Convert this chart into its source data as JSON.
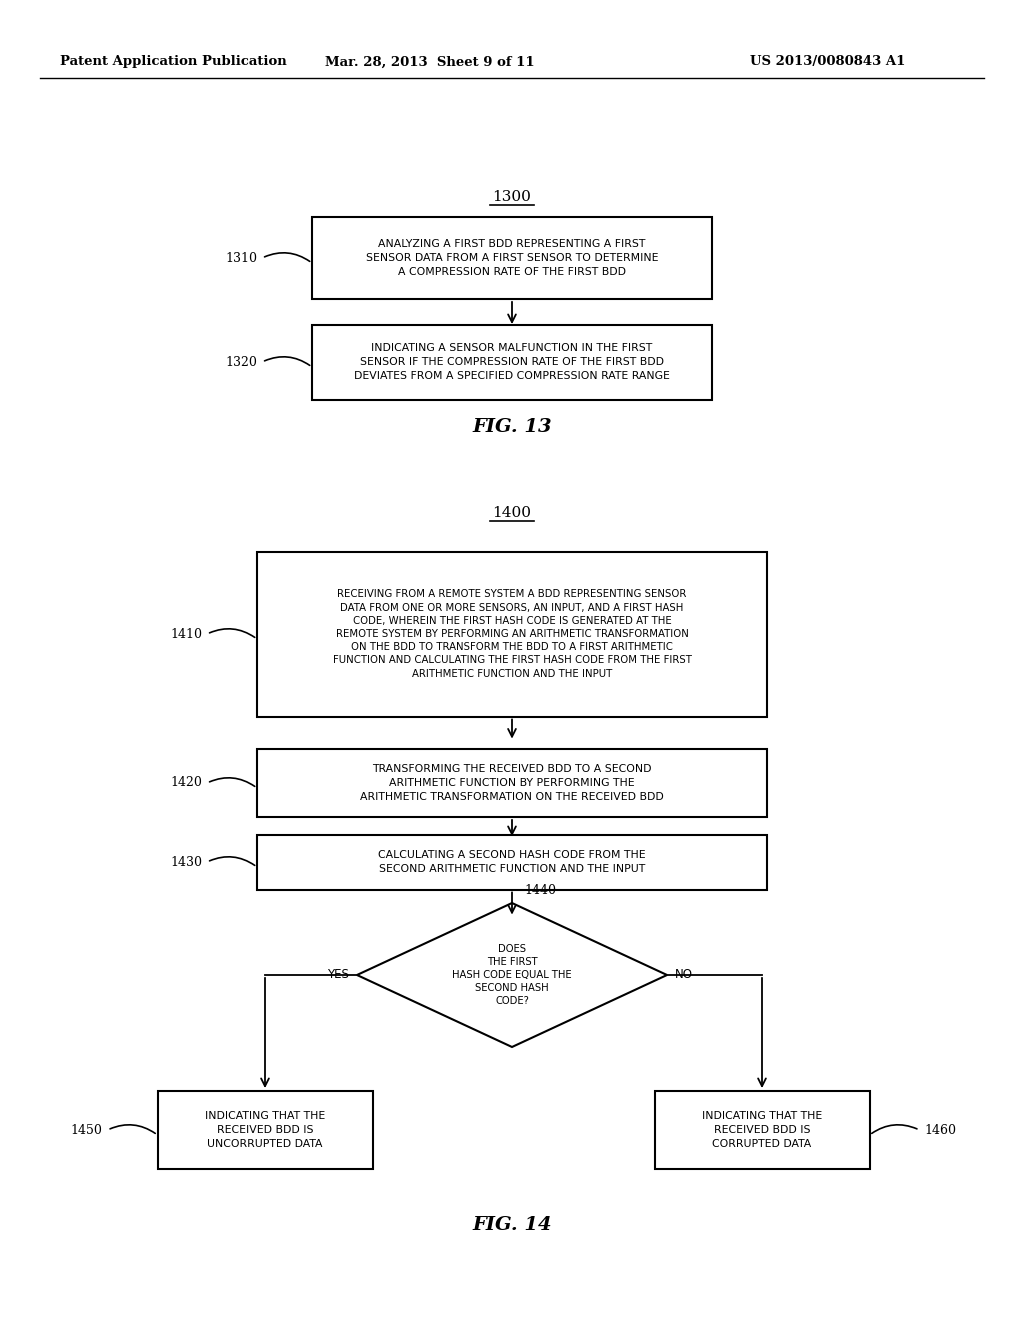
{
  "bg_color": "#ffffff",
  "header_left": "Patent Application Publication",
  "header_mid": "Mar. 28, 2013  Sheet 9 of 11",
  "header_right": "US 2013/0080843 A1",
  "fig13_label": "1300",
  "fig13_caption": "FIG. 13",
  "box1310_text": "ANALYZING A FIRST BDD REPRESENTING A FIRST\nSENSOR DATA FROM A FIRST SENSOR TO DETERMINE\nA COMPRESSION RATE OF THE FIRST BDD",
  "box1310_label": "1310",
  "box1320_text": "INDICATING A SENSOR MALFUNCTION IN THE FIRST\nSENSOR IF THE COMPRESSION RATE OF THE FIRST BDD\nDEVIATES FROM A SPECIFIED COMPRESSION RATE RANGE",
  "box1320_label": "1320",
  "fig14_label": "1400",
  "fig14_caption": "FIG. 14",
  "box1410_text": "RECEIVING FROM A REMOTE SYSTEM A BDD REPRESENTING SENSOR\nDATA FROM ONE OR MORE SENSORS, AN INPUT, AND A FIRST HASH\nCODE, WHEREIN THE FIRST HASH CODE IS GENERATED AT THE\nREMOTE SYSTEM BY PERFORMING AN ARITHMETIC TRANSFORMATION\nON THE BDD TO TRANSFORM THE BDD TO A FIRST ARITHMETIC\nFUNCTION AND CALCULATING THE FIRST HASH CODE FROM THE FIRST\nARITHMETIC FUNCTION AND THE INPUT",
  "box1410_label": "1410",
  "box1420_text": "TRANSFORMING THE RECEIVED BDD TO A SECOND\nARITHMETIC FUNCTION BY PERFORMING THE\nARITHMETIC TRANSFORMATION ON THE RECEIVED BDD",
  "box1420_label": "1420",
  "box1430_text": "CALCULATING A SECOND HASH CODE FROM THE\nSECOND ARITHMETIC FUNCTION AND THE INPUT",
  "box1430_label": "1430",
  "diamond1440_text": "DOES\nTHE FIRST\nHASH CODE EQUAL THE\nSECOND HASH\nCODE?",
  "diamond1440_label": "1440",
  "box1450_text": "INDICATING THAT THE\nRECEIVED BDD IS\nUNCORRUPTED DATA",
  "box1450_label": "1450",
  "box1460_text": "INDICATING THAT THE\nRECEIVED BDD IS\nCORRUPTED DATA",
  "box1460_label": "1460",
  "yes_label": "YES",
  "no_label": "NO"
}
